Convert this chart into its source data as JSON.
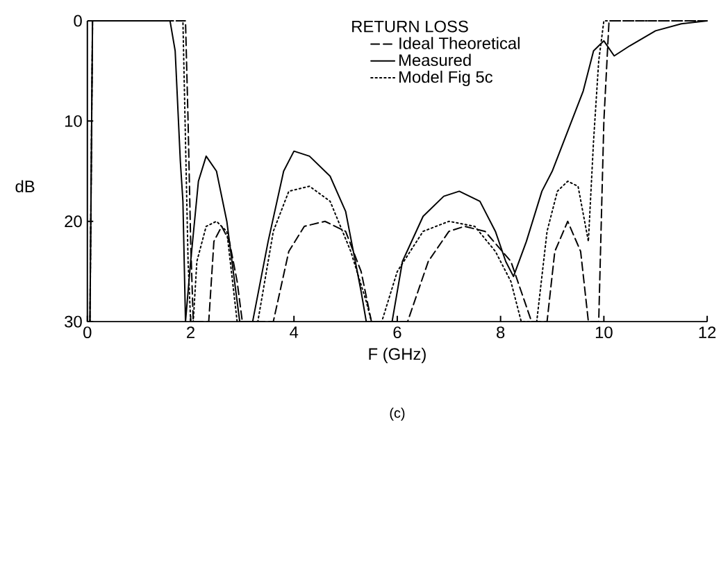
{
  "chart_data": {
    "type": "line",
    "legend_title": "RETURN LOSS",
    "xlabel": "F (GHz)",
    "ylabel": "dB",
    "annotations": [
      "(c)"
    ],
    "xlim": [
      0,
      12
    ],
    "ylim": [
      30,
      0
    ],
    "xticks": [
      0,
      2,
      4,
      6,
      8,
      10,
      12
    ],
    "yticks": [
      0,
      10,
      20,
      30
    ],
    "legend": "top",
    "grid": false,
    "marker": "none",
    "series": [
      {
        "name": "Ideal Theoretical",
        "color": "#000000",
        "line_style": "dashed",
        "x": [
          0.05,
          0.1,
          1.0,
          1.9,
          1.95,
          2.0,
          2.05,
          2.35,
          2.45,
          2.6,
          2.75,
          2.9,
          3.0,
          3.6,
          3.9,
          4.2,
          4.6,
          5.0,
          5.3,
          5.5,
          6.2,
          6.6,
          7.0,
          7.3,
          7.7,
          8.2,
          8.6,
          8.9,
          9.05,
          9.3,
          9.55,
          9.7,
          9.9,
          10.0,
          10.1,
          11,
          12
        ],
        "values": [
          30,
          0,
          0,
          0,
          10,
          22,
          30,
          30,
          22,
          20.5,
          22,
          26,
          30,
          30,
          23,
          20.5,
          20,
          21,
          25,
          30,
          30,
          24,
          21,
          20.5,
          21,
          24,
          30,
          30,
          23,
          20,
          23,
          30,
          30,
          10,
          0,
          0,
          0
        ]
      },
      {
        "name": "Measured",
        "color": "#000000",
        "line_style": "solid",
        "x": [
          0.05,
          0.1,
          1.0,
          1.6,
          1.7,
          1.8,
          1.85,
          1.9,
          2.0,
          2.15,
          2.3,
          2.5,
          2.7,
          2.85,
          2.95,
          3.2,
          3.5,
          3.8,
          4.0,
          4.3,
          4.7,
          5.0,
          5.3,
          5.4,
          5.9,
          6.1,
          6.5,
          6.9,
          7.2,
          7.6,
          7.9,
          8.1,
          8.25,
          8.5,
          8.8,
          9.0,
          9.3,
          9.6,
          9.8,
          10.0,
          10.2,
          10.5,
          11.0,
          11.5,
          12
        ],
        "values": [
          30,
          0,
          0,
          0,
          3,
          14,
          18,
          30,
          24,
          16,
          13.5,
          15,
          20,
          26,
          30,
          30,
          22,
          15,
          13,
          13.5,
          15.5,
          19,
          27,
          30,
          30,
          24,
          19.5,
          17.5,
          17,
          18,
          21,
          24,
          25.5,
          22,
          17,
          15,
          11,
          7,
          3,
          2,
          3.5,
          2.5,
          1,
          0.3,
          0
        ]
      },
      {
        "name": "Model Fig 5c",
        "color": "#000000",
        "line_style": "dotted",
        "x": [
          0.05,
          0.1,
          1.0,
          1.85,
          1.9,
          1.95,
          2.0,
          2.05,
          2.12,
          2.3,
          2.5,
          2.7,
          2.9,
          3.3,
          3.6,
          3.9,
          4.3,
          4.7,
          5.1,
          5.4,
          5.5,
          5.7,
          6.0,
          6.5,
          7.0,
          7.5,
          7.9,
          8.2,
          8.4,
          8.7,
          8.9,
          9.1,
          9.3,
          9.5,
          9.7,
          9.8,
          9.9,
          10.0,
          11,
          12
        ],
        "values": [
          30,
          0,
          0,
          0,
          12,
          24,
          30,
          30,
          24,
          20.5,
          20,
          21,
          30,
          30,
          21,
          17,
          16.5,
          18,
          23,
          28,
          30,
          30,
          25,
          21,
          20,
          20.5,
          23,
          26,
          30,
          30,
          21,
          17,
          16,
          16.5,
          22,
          12,
          4,
          0,
          0,
          0
        ]
      }
    ]
  }
}
